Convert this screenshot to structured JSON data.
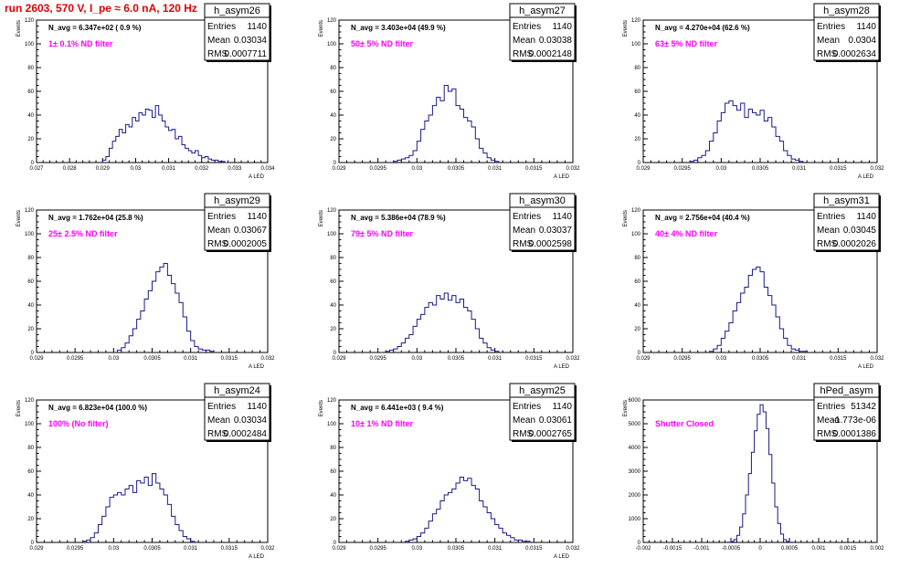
{
  "page": {
    "title": "run 2603,   570 V, I_pe ≈ 6.0 nA, 120 Hz"
  },
  "chart_data": [
    {
      "type": "histogram",
      "name": "h_asym26",
      "nav": "N_avg = 6.347e+02 ( 0.9 %)",
      "label": "1± 0.1% ND filter",
      "stats": {
        "entries": "1140",
        "mean": "0.03034",
        "rms": "0.0007711"
      },
      "xlim": [
        0.027,
        0.034
      ],
      "ylim": [
        0,
        120
      ],
      "xticks": [
        "0.027",
        "0.028",
        "0.029",
        "0.03",
        "0.031",
        "0.032",
        "0.033",
        "0.034"
      ],
      "yticks": [
        "0",
        "20",
        "40",
        "60",
        "80",
        "100",
        "120"
      ],
      "xlabel": "A_{LED}",
      "ylabel": "Events",
      "series": [
        {
          "x": [
            0.029,
            0.0291,
            0.0292,
            0.0293,
            0.0294,
            0.0295,
            0.0296,
            0.0297,
            0.0298,
            0.0299,
            0.03,
            0.0301,
            0.0302,
            0.0303,
            0.0304,
            0.0305,
            0.0306,
            0.0307,
            0.0308,
            0.0309,
            0.031,
            0.0311,
            0.0312,
            0.0313,
            0.0314,
            0.0315,
            0.0316,
            0.0317,
            0.0318,
            0.0319,
            0.032,
            0.0321,
            0.0322,
            0.0323,
            0.0324,
            0.0325,
            0.0326,
            0.0327
          ],
          "y": [
            2,
            5,
            12,
            18,
            22,
            28,
            25,
            32,
            30,
            38,
            35,
            42,
            40,
            45,
            44,
            38,
            48,
            40,
            35,
            30,
            27,
            28,
            20,
            22,
            15,
            12,
            10,
            8,
            10,
            6,
            4,
            5,
            3,
            2,
            2,
            1,
            1,
            0
          ]
        }
      ]
    },
    {
      "type": "histogram",
      "name": "h_asym27",
      "nav": "N_avg = 3.403e+04 (49.9 %)",
      "label": "50± 5% ND filter",
      "stats": {
        "entries": "1140",
        "mean": "0.03038",
        "rms": "0.0002148"
      },
      "xlim": [
        0.029,
        0.032
      ],
      "ylim": [
        0,
        120
      ],
      "xticks": [
        "0.029",
        "0.0295",
        "0.03",
        "0.0305",
        "0.031",
        "0.0315",
        "0.032"
      ],
      "yticks": [
        "0",
        "20",
        "40",
        "60",
        "80",
        "100",
        "120"
      ],
      "xlabel": "A_{LED}",
      "ylabel": "Events",
      "series": [
        {
          "x": [
            0.0297,
            0.02975,
            0.0298,
            0.02985,
            0.0299,
            0.02995,
            0.03,
            0.03005,
            0.0301,
            0.03015,
            0.0302,
            0.03025,
            0.0303,
            0.03035,
            0.0304,
            0.03045,
            0.0305,
            0.03055,
            0.0306,
            0.03065,
            0.0307,
            0.03075,
            0.0308,
            0.03085,
            0.0309,
            0.03095,
            0.031
          ],
          "y": [
            1,
            2,
            3,
            4,
            6,
            10,
            18,
            28,
            35,
            40,
            48,
            55,
            52,
            65,
            60,
            62,
            48,
            45,
            38,
            35,
            30,
            20,
            12,
            8,
            4,
            2,
            1
          ]
        }
      ]
    },
    {
      "type": "histogram",
      "name": "h_asym28",
      "nav": "N_avg = 4.270e+04 (62.6 %)",
      "label": "63± 5% ND filter",
      "stats": {
        "entries": "1140",
        "mean": "0.0304",
        "rms": "0.0002634"
      },
      "xlim": [
        0.029,
        0.032
      ],
      "ylim": [
        0,
        120
      ],
      "xticks": [
        "0.029",
        "0.0295",
        "0.03",
        "0.0305",
        "0.031",
        "0.0315",
        "0.032"
      ],
      "yticks": [
        "0",
        "20",
        "40",
        "60",
        "80",
        "100",
        "120"
      ],
      "xlabel": "A_{LED}",
      "ylabel": "Events",
      "series": [
        {
          "x": [
            0.0296,
            0.02965,
            0.0297,
            0.02975,
            0.0298,
            0.02985,
            0.0299,
            0.02995,
            0.03,
            0.03005,
            0.0301,
            0.03015,
            0.0302,
            0.03025,
            0.0303,
            0.03035,
            0.0304,
            0.03045,
            0.0305,
            0.03055,
            0.0306,
            0.03065,
            0.0307,
            0.03075,
            0.0308,
            0.03085,
            0.0309,
            0.03095,
            0.031
          ],
          "y": [
            1,
            2,
            4,
            6,
            10,
            18,
            25,
            35,
            42,
            50,
            52,
            48,
            44,
            50,
            38,
            45,
            42,
            40,
            44,
            35,
            38,
            30,
            22,
            18,
            10,
            6,
            3,
            2,
            1
          ]
        }
      ]
    },
    {
      "type": "histogram",
      "name": "h_asym29",
      "nav": "N_avg = 1.762e+04 (25.8 %)",
      "label": "25± 2.5% ND filter",
      "stats": {
        "entries": "1140",
        "mean": "0.03067",
        "rms": "0.0002005"
      },
      "xlim": [
        0.029,
        0.032
      ],
      "ylim": [
        0,
        120
      ],
      "xticks": [
        "0.029",
        "0.0295",
        "0.03",
        "0.0305",
        "0.031",
        "0.0315",
        "0.032"
      ],
      "yticks": [
        "0",
        "20",
        "40",
        "60",
        "80",
        "100",
        "120"
      ],
      "xlabel": "A_{LED}",
      "ylabel": "Events",
      "series": [
        {
          "x": [
            0.03005,
            0.0301,
            0.03015,
            0.0302,
            0.03025,
            0.0303,
            0.03035,
            0.0304,
            0.03045,
            0.0305,
            0.03055,
            0.0306,
            0.03065,
            0.0307,
            0.03075,
            0.0308,
            0.03085,
            0.0309,
            0.03095,
            0.031,
            0.03105,
            0.0311,
            0.03115,
            0.0312,
            0.03125
          ],
          "y": [
            2,
            4,
            8,
            14,
            20,
            28,
            35,
            45,
            52,
            60,
            68,
            72,
            75,
            65,
            58,
            50,
            42,
            30,
            18,
            10,
            5,
            3,
            2,
            2,
            1
          ]
        }
      ]
    },
    {
      "type": "histogram",
      "name": "h_asym30",
      "nav": "N_avg = 5.386e+04 (78.9 %)",
      "label": "79± 5% ND filter",
      "stats": {
        "entries": "1140",
        "mean": "0.03037",
        "rms": "0.0002598"
      },
      "xlim": [
        0.029,
        0.032
      ],
      "ylim": [
        0,
        120
      ],
      "xticks": [
        "0.029",
        "0.0295",
        "0.03",
        "0.0305",
        "0.031",
        "0.0315",
        "0.032"
      ],
      "yticks": [
        "0",
        "20",
        "40",
        "60",
        "80",
        "100",
        "120"
      ],
      "xlabel": "A_{LED}",
      "ylabel": "Events",
      "series": [
        {
          "x": [
            0.0296,
            0.02965,
            0.0297,
            0.02975,
            0.0298,
            0.02985,
            0.0299,
            0.02995,
            0.03,
            0.03005,
            0.0301,
            0.03015,
            0.0302,
            0.03025,
            0.0303,
            0.03035,
            0.0304,
            0.03045,
            0.0305,
            0.03055,
            0.0306,
            0.03065,
            0.0307,
            0.03075,
            0.0308,
            0.03085,
            0.0309,
            0.03095,
            0.031
          ],
          "y": [
            1,
            2,
            3,
            5,
            8,
            12,
            15,
            22,
            28,
            32,
            38,
            42,
            40,
            48,
            45,
            50,
            44,
            48,
            42,
            45,
            38,
            35,
            28,
            20,
            12,
            8,
            4,
            2,
            1
          ]
        }
      ]
    },
    {
      "type": "histogram",
      "name": "h_asym31",
      "nav": "N_avg = 2.756e+04 (40.4 %)",
      "label": "40± 4% ND filter",
      "stats": {
        "entries": "1140",
        "mean": "0.03045",
        "rms": "0.0002026"
      },
      "xlim": [
        0.029,
        0.032
      ],
      "ylim": [
        0,
        120
      ],
      "xticks": [
        "0.029",
        "0.0295",
        "0.03",
        "0.0305",
        "0.031",
        "0.0315",
        "0.032"
      ],
      "yticks": [
        "0",
        "20",
        "40",
        "60",
        "80",
        "100",
        "120"
      ],
      "xlabel": "A_{LED}",
      "ylabel": "Events",
      "series": [
        {
          "x": [
            0.02985,
            0.0299,
            0.02995,
            0.03,
            0.03005,
            0.0301,
            0.03015,
            0.0302,
            0.03025,
            0.0303,
            0.03035,
            0.0304,
            0.03045,
            0.0305,
            0.03055,
            0.0306,
            0.03065,
            0.0307,
            0.03075,
            0.0308,
            0.03085,
            0.0309,
            0.03095,
            0.031,
            0.03105
          ],
          "y": [
            1,
            3,
            6,
            12,
            18,
            25,
            35,
            42,
            50,
            55,
            65,
            70,
            72,
            68,
            55,
            48,
            40,
            30,
            20,
            12,
            6,
            3,
            2,
            1,
            1
          ]
        }
      ]
    },
    {
      "type": "histogram",
      "name": "h_asym24",
      "nav": "N_avg = 6.823e+04 (100.0 %)",
      "label": "100% (No filter)",
      "stats": {
        "entries": "1140",
        "mean": "0.03034",
        "rms": "0.0002484"
      },
      "xlim": [
        0.029,
        0.032
      ],
      "ylim": [
        0,
        120
      ],
      "xticks": [
        "0.029",
        "0.0295",
        "0.03",
        "0.0305",
        "0.031",
        "0.0315",
        "0.032"
      ],
      "yticks": [
        "0",
        "20",
        "40",
        "60",
        "80",
        "100",
        "120"
      ],
      "xlabel": "A_{LED}",
      "ylabel": "Events",
      "series": [
        {
          "x": [
            0.0296,
            0.02965,
            0.0297,
            0.02975,
            0.0298,
            0.02985,
            0.0299,
            0.02995,
            0.03,
            0.03005,
            0.0301,
            0.03015,
            0.0302,
            0.03025,
            0.0303,
            0.03035,
            0.0304,
            0.03045,
            0.0305,
            0.03055,
            0.0306,
            0.03065,
            0.0307,
            0.03075,
            0.0308,
            0.03085,
            0.0309,
            0.03095,
            0.031
          ],
          "y": [
            1,
            2,
            4,
            8,
            15,
            22,
            30,
            38,
            40,
            42,
            40,
            45,
            48,
            42,
            52,
            50,
            55,
            48,
            58,
            50,
            45,
            40,
            32,
            22,
            15,
            10,
            5,
            3,
            1
          ]
        }
      ]
    },
    {
      "type": "histogram",
      "name": "h_asym25",
      "nav": "N_avg = 6.441e+03 ( 9.4 %)",
      "label": "10± 1% ND filter",
      "stats": {
        "entries": "1140",
        "mean": "0.03061",
        "rms": "0.0002765"
      },
      "xlim": [
        0.029,
        0.032
      ],
      "ylim": [
        0,
        120
      ],
      "xticks": [
        "0.029",
        "0.0295",
        "0.03",
        "0.0305",
        "0.031",
        "0.0315",
        "0.032"
      ],
      "yticks": [
        "0",
        "20",
        "40",
        "60",
        "80",
        "100",
        "120"
      ],
      "xlabel": "A_{LED}",
      "ylabel": "Events",
      "series": [
        {
          "x": [
            0.02985,
            0.0299,
            0.02995,
            0.03,
            0.03005,
            0.0301,
            0.03015,
            0.0302,
            0.03025,
            0.0303,
            0.03035,
            0.0304,
            0.03045,
            0.0305,
            0.03055,
            0.0306,
            0.03065,
            0.0307,
            0.03075,
            0.0308,
            0.03085,
            0.0309,
            0.03095,
            0.031,
            0.03105,
            0.0311,
            0.03115,
            0.0312,
            0.03125,
            0.0313,
            0.03135,
            0.0314
          ],
          "y": [
            1,
            2,
            3,
            5,
            8,
            12,
            18,
            24,
            28,
            35,
            40,
            42,
            45,
            50,
            55,
            52,
            54,
            48,
            45,
            35,
            30,
            25,
            20,
            15,
            12,
            8,
            6,
            4,
            2,
            2,
            1,
            1
          ]
        }
      ]
    },
    {
      "type": "histogram",
      "name": "hPed_asym",
      "nav": "",
      "label": "Shutter Closed",
      "stats": {
        "entries": "51342",
        "mean": "-1.773e-06",
        "rms": "0.0001386"
      },
      "xlim": [
        -0.002,
        0.002
      ],
      "ylim": [
        0,
        6000
      ],
      "xticks": [
        "-0.002",
        "-0.0015",
        "-0.001",
        "-0.0005",
        "0",
        "0.0005",
        "0.001",
        "0.0015",
        "0.002"
      ],
      "yticks": [
        "0",
        "1000",
        "2000",
        "3000",
        "4000",
        "5000",
        "6000"
      ],
      "xlabel": "",
      "ylabel": "Events",
      "series": [
        {
          "x": [
            -0.00055,
            -0.0005,
            -0.00045,
            -0.0004,
            -0.00035,
            -0.0003,
            -0.00025,
            -0.0002,
            -0.00015,
            -0.0001,
            -5e-05,
            0.0,
            5e-05,
            0.0001,
            0.00015,
            0.0002,
            0.00025,
            0.0003,
            0.00035,
            0.0004,
            0.00045,
            0.0005
          ],
          "y": [
            10,
            40,
            120,
            300,
            650,
            1200,
            2000,
            2900,
            3800,
            4700,
            5400,
            5800,
            5500,
            4800,
            3700,
            2500,
            1500,
            800,
            350,
            120,
            40,
            10
          ]
        }
      ]
    }
  ]
}
